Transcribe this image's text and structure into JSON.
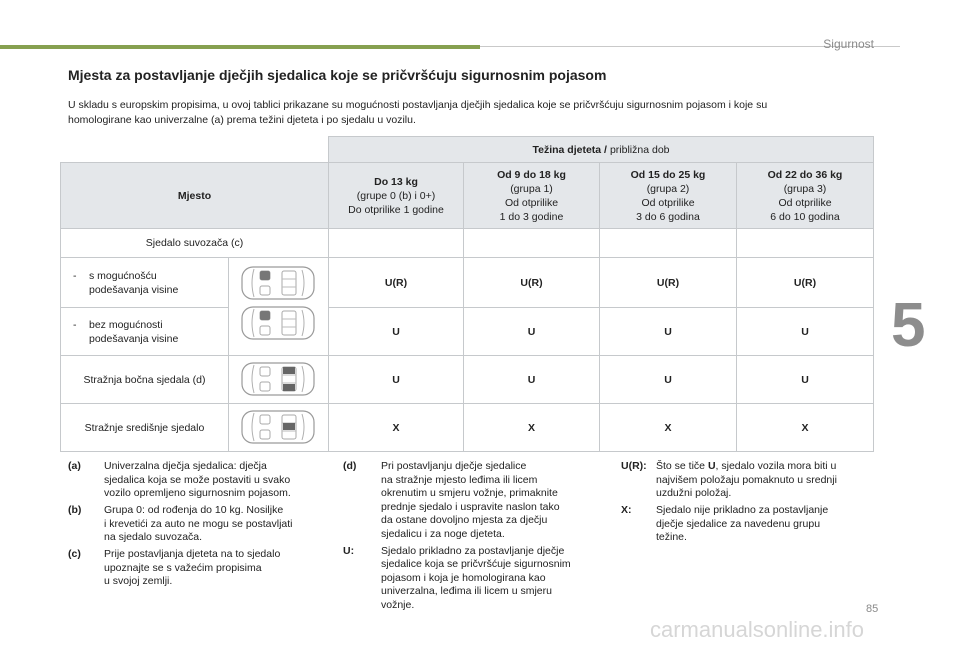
{
  "header": {
    "section": "Sigurnost"
  },
  "title": "Mjesta za postavljanje dječjih sjedalica koje se pričvršćuju sigurnosnim pojasom",
  "intro": [
    "U skladu s europskim propisima, u ovoj tablici prikazane su mogućnosti postavljanja dječjih sjedalica koje se pričvršćuju sigurnosnim pojasom i koje su",
    "homologirane kao univerzalne (a) prema težini djeteta i po sjedalu u vozilu."
  ],
  "table": {
    "weight_header": {
      "bold": "Težina djeteta /",
      "normal": "približna dob"
    },
    "place_header": "Mjesto",
    "columns": [
      {
        "title": "Do 13 kg",
        "lines": [
          "(grupe 0 (b) i 0+)",
          "Do otprilike 1 godine"
        ]
      },
      {
        "title": "Od 9 do 18 kg",
        "lines": [
          "(grupa 1)",
          "Od otprilike",
          "1 do 3 godine"
        ]
      },
      {
        "title": "Od 15 do 25 kg",
        "lines": [
          "(grupa 2)",
          "Od otprilike",
          "3 do 6 godina"
        ]
      },
      {
        "title": "Od 22 do 36 kg",
        "lines": [
          "(grupa 3)",
          "Od otprilike",
          "6 do 10 godina"
        ]
      }
    ],
    "rows": [
      {
        "label": [
          "Sjedalo suvozača (c)"
        ]
      },
      {
        "bullet": "-",
        "label": [
          "s mogućnošću",
          "podešavanja visine"
        ],
        "cells": [
          "U(R)",
          "U(R)",
          "U(R)",
          "U(R)"
        ]
      },
      {
        "bullet": "-",
        "label": [
          "bez mogućnosti",
          "podešavanja visine"
        ],
        "cells": [
          "U",
          "U",
          "U",
          "U"
        ]
      },
      {
        "label": [
          "Stražnja bočna sjedala (d)"
        ],
        "cells": [
          "U",
          "U",
          "U",
          "U"
        ]
      },
      {
        "label": [
          "Stražnje središnje sjedalo"
        ],
        "cells": [
          "X",
          "X",
          "X",
          "X"
        ]
      }
    ]
  },
  "notes": [
    [
      {
        "key": "(a)",
        "lines": [
          "Univerzalna dječja sjedalica: dječja",
          "sjedalica koja se može postaviti u svako",
          "vozilo opremljeno sigurnosnim pojasom."
        ]
      },
      {
        "key": "(b)",
        "lines": [
          "Grupa 0: od rođenja do 10 kg. Nosiljke",
          "i krevetići za auto ne mogu se postavljati",
          "na sjedalo suvozača."
        ]
      },
      {
        "key": "(c)",
        "lines": [
          "Prije postavljanja djeteta na to sjedalo",
          "upoznajte se s važećim propisima",
          "u svojoj zemlji."
        ]
      }
    ],
    [
      {
        "key": "(d)",
        "lines": [
          "Pri postavljanju dječje sjedalice",
          "na stražnje mjesto leđima ili licem",
          "okrenutim u smjeru vožnje, primaknite",
          "prednje sjedalo i uspravite naslon tako",
          "da ostane dovoljno mjesta za dječju",
          "sjedalicu i za noge djeteta."
        ]
      },
      {
        "key": "U:",
        "lines": [
          "Sjedalo prikladno za postavljanje dječje",
          "sjedalice koja se pričvršćuje sigurnosnim",
          "pojasom i koja je homologirana kao",
          "univerzalna, leđima ili licem u smjeru",
          "vožnje."
        ]
      }
    ],
    [
      {
        "key": "U(R):",
        "lines": [
          [
            "Što se tiče ",
            "U",
            ", sjedalo vozila mora biti u"
          ],
          "najvišem položaju pomaknuto u srednji",
          "uzdužni položaj."
        ]
      },
      {
        "key": "X:",
        "lines": [
          "Sjedalo nije prikladno za postavljanje",
          "dječje sjedalice za navedenu grupu",
          "težine."
        ]
      }
    ]
  ],
  "chapter": "5",
  "page_number": "85",
  "watermark": "carmanualsonline.info"
}
